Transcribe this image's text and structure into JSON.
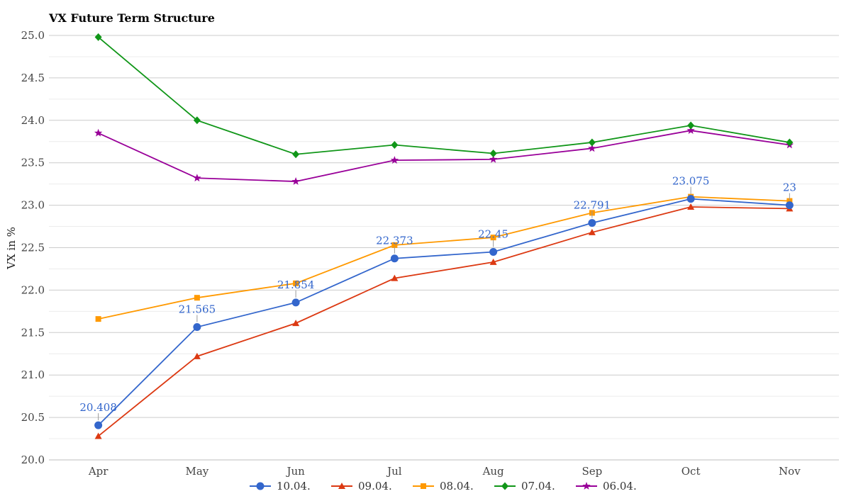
{
  "chart_data": {
    "type": "line",
    "title": "VX Future Term Structure",
    "xlabel": "",
    "ylabel": "VX in %",
    "ylim": [
      20.0,
      25.0
    ],
    "yticks": [
      "20.0",
      "20.5",
      "21.0",
      "21.5",
      "22.0",
      "22.5",
      "23.0",
      "23.5",
      "24.0",
      "24.5",
      "25.0"
    ],
    "categories": [
      "Apr",
      "May",
      "Jun",
      "Jul",
      "Aug",
      "Sep",
      "Oct",
      "Nov"
    ],
    "grid": true,
    "legend_position": "bottom",
    "series": [
      {
        "name": "10.04.",
        "color": "#3366cc",
        "marker": "circle",
        "values": [
          20.408,
          21.565,
          21.854,
          22.373,
          22.45,
          22.791,
          23.075,
          23
        ],
        "data_labels": [
          "20.408",
          "21.565",
          "21.854",
          "22.373",
          "22.45",
          "22.791",
          "23.075",
          "23"
        ]
      },
      {
        "name": "09.04.",
        "color": "#dc3912",
        "marker": "triangle",
        "values": [
          20.28,
          21.22,
          21.61,
          22.14,
          22.33,
          22.68,
          22.98,
          22.96
        ]
      },
      {
        "name": "08.04.",
        "color": "#ff9900",
        "marker": "square",
        "values": [
          21.66,
          21.91,
          22.08,
          22.53,
          22.62,
          22.91,
          23.1,
          23.05
        ]
      },
      {
        "name": "07.04.",
        "color": "#109618",
        "marker": "diamond",
        "values": [
          24.98,
          24.0,
          23.6,
          23.71,
          23.61,
          23.74,
          23.94,
          23.74
        ]
      },
      {
        "name": "06.04.",
        "color": "#990099",
        "marker": "star",
        "values": [
          23.85,
          23.32,
          23.28,
          23.53,
          23.54,
          23.67,
          23.88,
          23.71
        ]
      }
    ]
  }
}
